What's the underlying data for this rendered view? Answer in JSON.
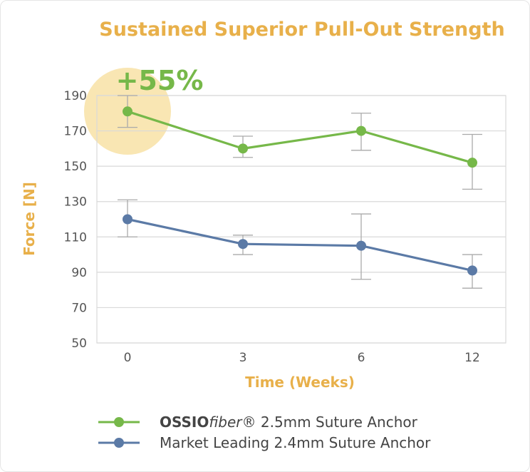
{
  "colors": {
    "accent": "#e8b04a",
    "series_green": "#76b849",
    "series_blue": "#5b7aa6",
    "callout_circle": "#f9e6b3",
    "grid": "#d9d9d9",
    "error_bar": "#aaaaaa"
  },
  "callout": {
    "text": "+55%"
  },
  "legend": {
    "items": [
      {
        "brand_bold": "OSSIO",
        "brand_italic": "fiber",
        "rest": "® 2.5mm Suture Anchor"
      },
      {
        "text": "Market Leading 2.4mm Suture Anchor"
      }
    ]
  },
  "chart_data": {
    "type": "line",
    "title": "Sustained Superior Pull-Out Strength",
    "xlabel": "Time (Weeks)",
    "ylabel": "Force [N]",
    "categories": [
      "0",
      "3",
      "6",
      "12"
    ],
    "ylim": [
      50,
      190
    ],
    "yticks": [
      190,
      170,
      150,
      130,
      110,
      90,
      70,
      50
    ],
    "grid": true,
    "legend_position": "bottom",
    "series": [
      {
        "name": "OSSIOfiber® 2.5mm Suture Anchor",
        "color": "#76b849",
        "values": [
          181,
          160,
          170,
          152
        ],
        "error_low": [
          172,
          155,
          159,
          137
        ],
        "error_high": [
          190,
          167,
          180,
          168
        ]
      },
      {
        "name": "Market Leading 2.4mm Suture Anchor",
        "color": "#5b7aa6",
        "values": [
          120,
          106,
          105,
          91
        ],
        "error_low": [
          110,
          100,
          86,
          81
        ],
        "error_high": [
          131,
          111,
          123,
          100
        ]
      }
    ]
  }
}
